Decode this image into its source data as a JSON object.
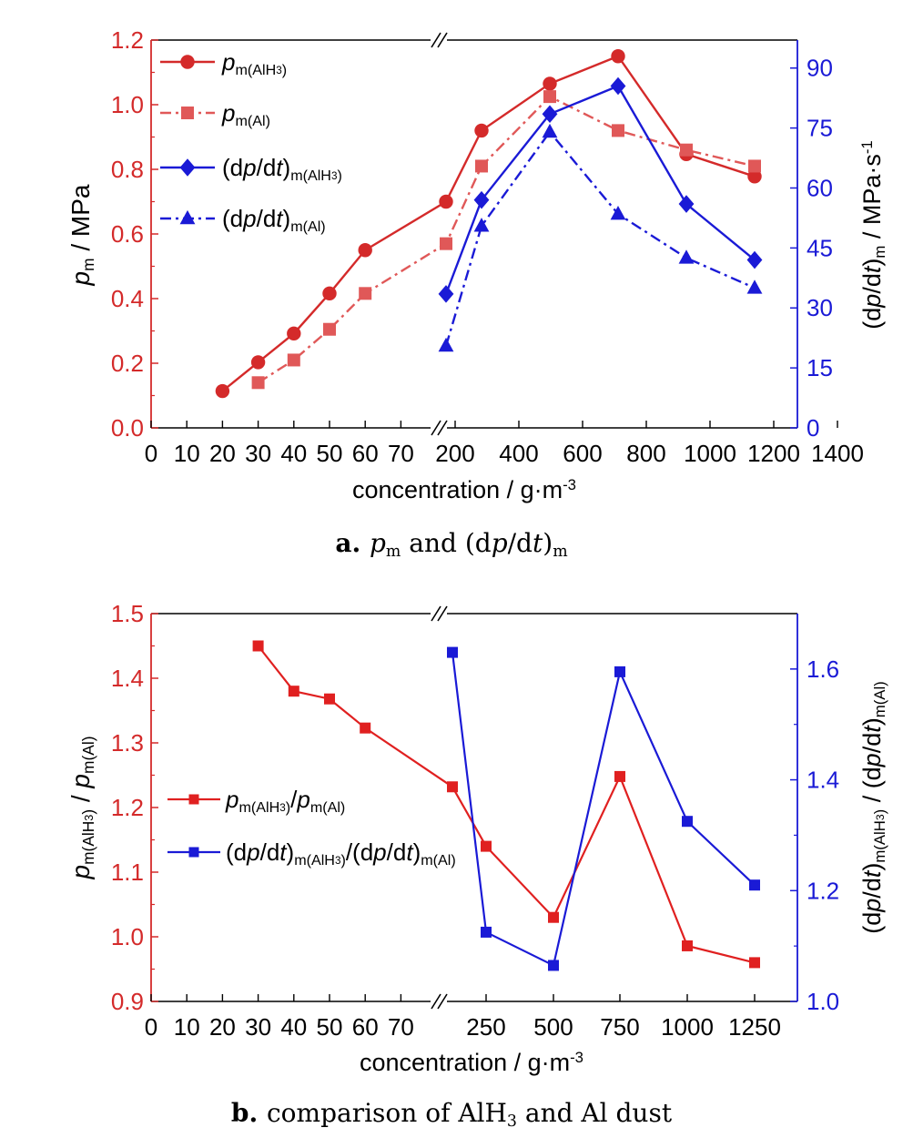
{
  "chart_data": [
    {
      "id": "a",
      "type": "line",
      "caption": {
        "letter": "a.",
        "text": "p_m and (dp/dt)_m"
      },
      "xlabel": "concentration / g·m⁻³",
      "x_break": true,
      "x_ticks_left": [
        "0",
        "10",
        "20",
        "30",
        "40",
        "50",
        "60",
        "70"
      ],
      "x_ticks_right": [
        "200",
        "400",
        "600",
        "800",
        "1000",
        "1200",
        "1400"
      ],
      "y_left": {
        "label": "p_m / MPa",
        "color": "#d42a2a",
        "ylim": [
          0,
          1.2
        ],
        "ticks": [
          "0.0",
          "0.2",
          "0.4",
          "0.6",
          "0.8",
          "1.0",
          "1.2"
        ]
      },
      "y_right": {
        "label": "(dp/dt)_m / MPa·s⁻¹",
        "color": "#1a1ad6",
        "ylim": [
          0,
          97
        ],
        "ticks": [
          "0",
          "15",
          "30",
          "45",
          "60",
          "75",
          "90"
        ]
      },
      "legend_position": "top-left",
      "series": [
        {
          "name": "p_m(AlH3)",
          "axis": "left",
          "color": "#d42a2a",
          "dash": "solid",
          "marker": "circle",
          "x": [
            20,
            30,
            40,
            50,
            60,
            "150",
            "250",
            "500",
            "750",
            "1000",
            "1250"
          ],
          "values": [
            0.114,
            0.203,
            0.292,
            0.416,
            0.55,
            0.7,
            0.92,
            1.065,
            1.15,
            0.847,
            0.778
          ]
        },
        {
          "name": "p_m(Al)",
          "axis": "left",
          "color": "#e05858",
          "dash": "dashdot",
          "marker": "square",
          "x": [
            30,
            40,
            50,
            60,
            "150",
            "250",
            "500",
            "750",
            "1000",
            "1250"
          ],
          "values": [
            0.14,
            0.21,
            0.305,
            0.416,
            0.57,
            0.81,
            1.025,
            0.92,
            0.86,
            0.81
          ]
        },
        {
          "name": "(dp/dt)_m(AlH3)",
          "axis": "right",
          "color": "#1a1ad6",
          "dash": "solid",
          "marker": "diamond",
          "x": [
            "150",
            "250",
            "500",
            "750",
            "1000",
            "1250"
          ],
          "values": [
            33.5,
            57,
            78.5,
            85.5,
            56,
            42
          ]
        },
        {
          "name": "(dp/dt)_m(Al)",
          "axis": "right",
          "color": "#1a1ad6",
          "dash": "dashdot",
          "marker": "triangle",
          "x": [
            "150",
            "250",
            "500",
            "750",
            "1000",
            "1250"
          ],
          "values": [
            20.5,
            50.5,
            74,
            53.5,
            42.5,
            35
          ]
        }
      ]
    },
    {
      "id": "b",
      "type": "line",
      "caption": {
        "letter": "b.",
        "text": "comparison of AlH3 and Al dust"
      },
      "xlabel": "concentration / g·m⁻³",
      "x_break": true,
      "x_ticks_left": [
        "0",
        "10",
        "20",
        "30",
        "40",
        "50",
        "60",
        "70"
      ],
      "x_ticks_right": [
        "250",
        "500",
        "750",
        "1000",
        "1250"
      ],
      "y_left": {
        "label": "p_m(AlH3) / p_m(Al)",
        "color": "#d42a2a",
        "ylim": [
          0.9,
          1.5
        ],
        "ticks": [
          "0.9",
          "1.0",
          "1.1",
          "1.2",
          "1.3",
          "1.4",
          "1.5"
        ]
      },
      "y_right": {
        "label": "(dp/dt)_m(AlH3) / (dp/dt)_m(Al)",
        "color": "#1a1ad6",
        "ylim": [
          1.0,
          1.7
        ],
        "ticks": [
          "1.0",
          "1.2",
          "1.4",
          "1.6"
        ]
      },
      "legend_position": "center-left",
      "series": [
        {
          "name": "p_m(AlH3)/p_m(Al)",
          "axis": "left",
          "color": "#e02020",
          "dash": "solid",
          "marker": "square",
          "x": [
            30,
            40,
            50,
            60,
            "150",
            "250",
            "500",
            "750",
            "1000",
            "1250"
          ],
          "values": [
            1.45,
            1.38,
            1.368,
            1.323,
            1.232,
            1.14,
            1.03,
            1.248,
            0.986,
            0.96
          ]
        },
        {
          "name": "(dp/dt)_m(AlH3)/(dp/dt)_m(Al)",
          "axis": "right",
          "color": "#1a1ad6",
          "dash": "solid",
          "marker": "square",
          "x": [
            "150",
            "250",
            "500",
            "750",
            "1000",
            "1250"
          ],
          "values": [
            1.63,
            1.125,
            1.065,
            1.595,
            1.325,
            1.21
          ]
        }
      ]
    }
  ]
}
